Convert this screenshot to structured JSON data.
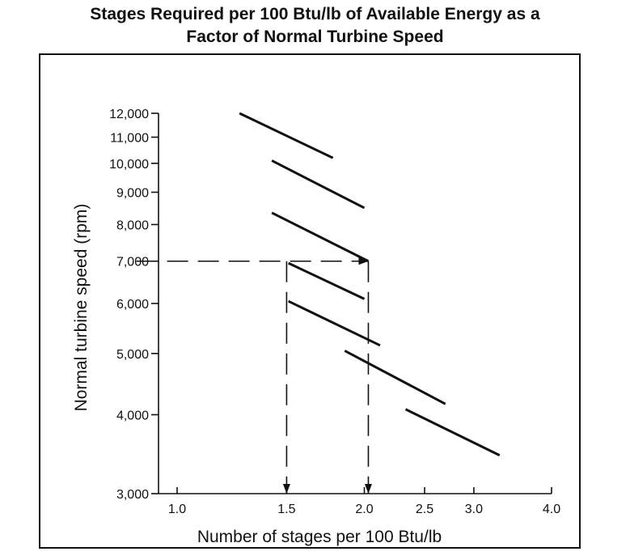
{
  "title_lines": [
    "Stages Required per 100 Btu/lb of Available Energy as a",
    "Factor of Normal Turbine Speed"
  ],
  "chart_data": {
    "type": "line",
    "title": "Stages Required per 100 Btu/lb of Available Energy as a Factor of Normal Turbine Speed",
    "xlabel": "Number of stages per 100 Btu/lb",
    "ylabel": "Normal turbine speed (rpm)",
    "x_scale": "log",
    "y_scale": "log",
    "xlim": [
      0.9,
      4.0
    ],
    "ylim": [
      3000,
      12000
    ],
    "grid": false,
    "x_ticks": [
      {
        "value": 1.0,
        "label": "1.0"
      },
      {
        "value": 1.5,
        "label": "1.5"
      },
      {
        "value": 2.0,
        "label": "2.0"
      },
      {
        "value": 2.5,
        "label": "2.5"
      },
      {
        "value": 3.0,
        "label": "3.0"
      },
      {
        "value": 4.0,
        "label": "4.0"
      }
    ],
    "y_ticks": [
      {
        "value": 3000,
        "label": "3,000"
      },
      {
        "value": 4000,
        "label": "4,000"
      },
      {
        "value": 5000,
        "label": "5,000"
      },
      {
        "value": 6000,
        "label": "6,000"
      },
      {
        "value": 7000,
        "label": "7,000"
      },
      {
        "value": 8000,
        "label": "8,000"
      },
      {
        "value": 9000,
        "label": "9,000"
      },
      {
        "value": 10000,
        "label": "10,000"
      },
      {
        "value": 11000,
        "label": "11,000"
      },
      {
        "value": 12000,
        "label": "12,000"
      }
    ],
    "series": [
      {
        "x": [
          1.26,
          1.78
        ],
        "y": [
          12000,
          10200
        ]
      },
      {
        "x": [
          1.42,
          2.0
        ],
        "y": [
          10100,
          8500
        ]
      },
      {
        "x": [
          1.42,
          2.03
        ],
        "y": [
          8350,
          7000
        ]
      },
      {
        "x": [
          1.51,
          2.0
        ],
        "y": [
          6950,
          6100
        ]
      },
      {
        "x": [
          1.51,
          2.12
        ],
        "y": [
          6050,
          5150
        ]
      },
      {
        "x": [
          1.86,
          2.7
        ],
        "y": [
          5050,
          4160
        ]
      },
      {
        "x": [
          2.33,
          3.3
        ],
        "y": [
          4080,
          3450
        ]
      }
    ],
    "guides": [
      {
        "path": [
          [
            0.86,
            7000
          ],
          [
            2.03,
            7000
          ]
        ],
        "arrow": "end"
      },
      {
        "path": [
          [
            1.5,
            7000
          ],
          [
            1.5,
            3000
          ]
        ],
        "arrow": "end"
      },
      {
        "path": [
          [
            2.03,
            7000
          ],
          [
            2.03,
            3000
          ]
        ],
        "arrow": "end"
      }
    ]
  }
}
